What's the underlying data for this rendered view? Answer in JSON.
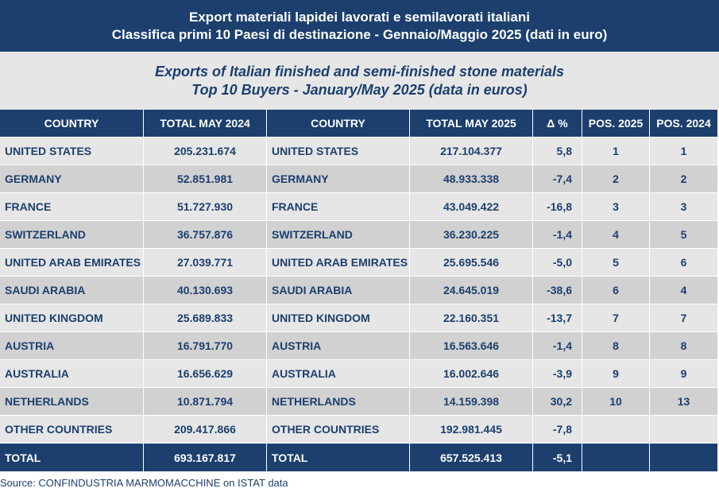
{
  "title_it": {
    "line1": "Export materiali lapidei lavorati e semilavorati italiani",
    "line2": "Classifica primi 10 Paesi di destinazione - Gennaio/Maggio 2025 (dati in euro)"
  },
  "title_en": {
    "line1": "Exports of Italian finished and semi-finished stone materials",
    "line2": "Top 10 Buyers - January/May 2025 (data in euros)"
  },
  "headers": {
    "country_2024": "COUNTRY",
    "total_2024": "TOTAL MAY 2024",
    "country_2025": "COUNTRY",
    "total_2025": "TOTAL MAY 2025",
    "delta": "Δ %",
    "pos_2025": "POS. 2025",
    "pos_2024": "POS. 2024"
  },
  "rows": [
    {
      "c1": "UNITED STATES",
      "t24": "205.231.674",
      "c2": "UNITED STATES",
      "t25": "217.104.377",
      "delta": "5,8",
      "p25": "1",
      "p24": "1"
    },
    {
      "c1": "GERMANY",
      "t24": "52.851.981",
      "c2": "GERMANY",
      "t25": "48.933.338",
      "delta": "-7,4",
      "p25": "2",
      "p24": "2"
    },
    {
      "c1": "FRANCE",
      "t24": "51.727.930",
      "c2": "FRANCE",
      "t25": "43.049.422",
      "delta": "-16,8",
      "p25": "3",
      "p24": "3"
    },
    {
      "c1": "SWITZERLAND",
      "t24": "36.757.876",
      "c2": "SWITZERLAND",
      "t25": "36.230.225",
      "delta": "-1,4",
      "p25": "4",
      "p24": "5"
    },
    {
      "c1": "UNITED ARAB EMIRATES",
      "t24": "27.039.771",
      "c2": "UNITED ARAB EMIRATES",
      "t25": "25.695.546",
      "delta": "-5,0",
      "p25": "5",
      "p24": "6"
    },
    {
      "c1": "SAUDI ARABIA",
      "t24": "40.130.693",
      "c2": "SAUDI ARABIA",
      "t25": "24.645.019",
      "delta": "-38,6",
      "p25": "6",
      "p24": "4"
    },
    {
      "c1": "UNITED KINGDOM",
      "t24": "25.689.833",
      "c2": "UNITED KINGDOM",
      "t25": "22.160.351",
      "delta": "-13,7",
      "p25": "7",
      "p24": "7"
    },
    {
      "c1": "AUSTRIA",
      "t24": "16.791.770",
      "c2": "AUSTRIA",
      "t25": "16.563.646",
      "delta": "-1,4",
      "p25": "8",
      "p24": "8"
    },
    {
      "c1": "AUSTRALIA",
      "t24": "16.656.629",
      "c2": "AUSTRALIA",
      "t25": "16.002.646",
      "delta": "-3,9",
      "p25": "9",
      "p24": "9"
    },
    {
      "c1": "NETHERLANDS",
      "t24": "10.871.794",
      "c2": "NETHERLANDS",
      "t25": "14.159.398",
      "delta": "30,2",
      "p25": "10",
      "p24": "13"
    },
    {
      "c1": "OTHER COUNTRIES",
      "t24": "209.417.866",
      "c2": "OTHER COUNTRIES",
      "t25": "192.981.445",
      "delta": "-7,8",
      "p25": "",
      "p24": ""
    }
  ],
  "total": {
    "label_2024": "TOTAL",
    "value_2024": "693.167.817",
    "label_2025": "TOTAL",
    "value_2025": "657.525.413",
    "delta": "-5,1"
  },
  "source": "Source: CONFINDUSTRIA MARMOMACCHINE on ISTAT data",
  "colors": {
    "navy": "#1c3f6e",
    "row_light": "#e6e6e6",
    "row_dark": "#d1d1d1"
  }
}
